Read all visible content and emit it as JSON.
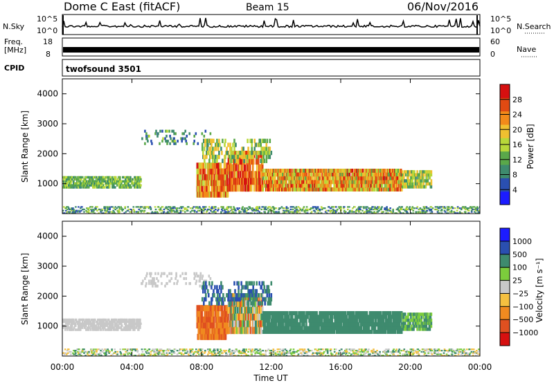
{
  "header": {
    "title": "Dome C East (fitACF)",
    "beam": "Beam 15",
    "date": "06/Nov/2016"
  },
  "noise_panel": {
    "left_label": "N.Sky",
    "left_ticks": [
      "10^5",
      "10^0"
    ],
    "right_ticks": [
      "10^5",
      "10^0"
    ],
    "right_label": "N.Search"
  },
  "freq_panel": {
    "left_label_top": "Freq.",
    "left_label_bottom": "[MHz]",
    "left_ticks": [
      "18",
      "8"
    ],
    "right_ticks": [
      "60",
      "0"
    ],
    "right_label": "Nave"
  },
  "cpid_panel": {
    "label": "CPID",
    "program": "twofsound  3501"
  },
  "colors": {
    "power_scale": [
      "#1c1cff",
      "#2a4fb0",
      "#3e8b6e",
      "#5aa84a",
      "#b8d83a",
      "#f0c030",
      "#f28a1a",
      "#e04a12",
      "#d61010"
    ],
    "velocity_scale": [
      "#d61010",
      "#e05020",
      "#f08a20",
      "#f5c040",
      "#c8c8c8",
      "#7ccc3c",
      "#3e8b6e",
      "#2a4fb0",
      "#1c1cff"
    ]
  },
  "chart_data": [
    {
      "type": "heatmap",
      "panel": "power",
      "xlabel": "",
      "ylabel": "Slant Range [km]",
      "y_ticks": [
        "1000",
        "2000",
        "3000",
        "4000"
      ],
      "ylim": [
        0,
        4500
      ],
      "xlim_hours": [
        0,
        24
      ],
      "colorbar_label": "Power [dB]",
      "colorbar_ticks": [
        "4",
        "8",
        "12",
        "16",
        "20",
        "24",
        "28"
      ],
      "colorbar_range": [
        0,
        30
      ]
    },
    {
      "type": "heatmap",
      "panel": "velocity",
      "xlabel": "Time UT",
      "ylabel": "Slant Range [km]",
      "x_ticks": [
        "00:00",
        "04:00",
        "08:00",
        "12:00",
        "16:00",
        "20:00",
        "00:00"
      ],
      "y_ticks": [
        "1000",
        "2000",
        "3000",
        "4000"
      ],
      "ylim": [
        0,
        4500
      ],
      "xlim_hours": [
        0,
        24
      ],
      "colorbar_label": "Velocity [m s⁻¹]",
      "colorbar_ticks": [
        "1000",
        "500",
        "100",
        "25",
        "−25",
        "−100",
        "−500",
        "−1000"
      ]
    }
  ]
}
